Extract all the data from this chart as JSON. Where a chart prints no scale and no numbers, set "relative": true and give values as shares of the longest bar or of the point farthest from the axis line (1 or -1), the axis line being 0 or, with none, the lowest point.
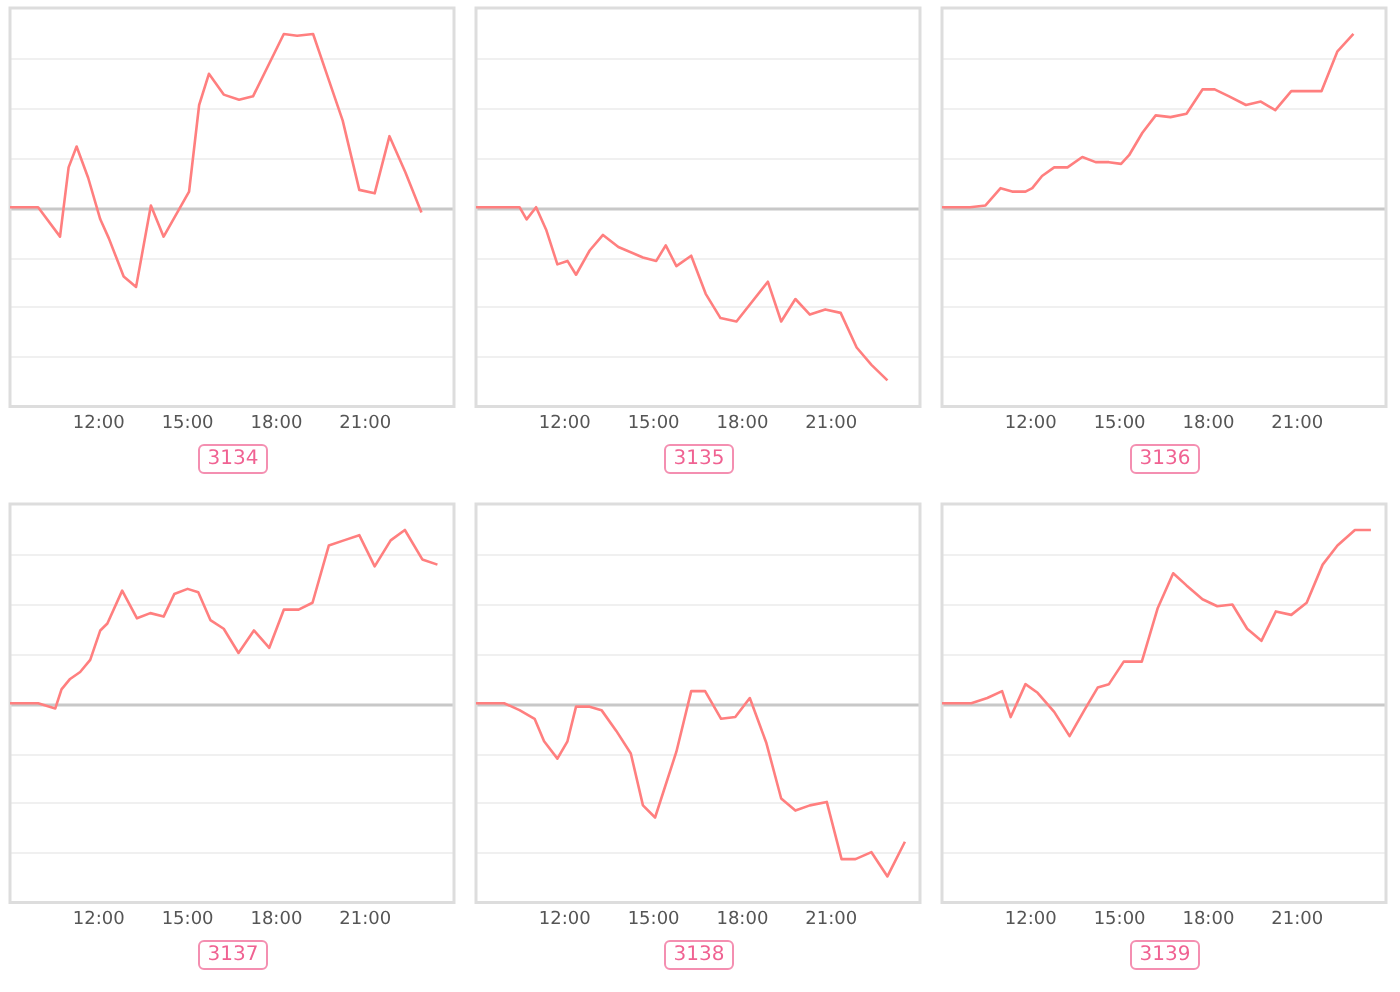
{
  "chart_data": [
    {
      "type": "line",
      "xlabel": "3134",
      "relative": true,
      "grid": "y",
      "marker": "none",
      "line_style": "solid",
      "tick_labels": "x",
      "color": "#ff7f7f",
      "xlim": [
        9,
        24
      ],
      "xticks": [
        {
          "value": 12,
          "label": "12:00"
        },
        {
          "value": 15,
          "label": "15:00"
        },
        {
          "value": 18,
          "label": "18:00"
        },
        {
          "value": 21,
          "label": "21:00"
        }
      ],
      "x": [
        9,
        9.95,
        10.69,
        10.98,
        11.25,
        11.64,
        12.05,
        12.34,
        12.84,
        13.26,
        13.76,
        14.19,
        15.05,
        15.39,
        15.72,
        16.22,
        16.74,
        17.21,
        18.25,
        18.7,
        19.24,
        19.72,
        20.24,
        20.8,
        21.32,
        21.82,
        22.36,
        22.9
      ],
      "values": [
        0,
        0,
        -0.17,
        0.23,
        0.35,
        0.17,
        -0.07,
        -0.18,
        -0.4,
        -0.46,
        0.01,
        -0.17,
        0.09,
        0.59,
        0.77,
        0.65,
        0.62,
        0.64,
        1,
        0.99,
        1,
        0.76,
        0.5,
        0.1,
        0.08,
        0.41,
        0.2,
        -0.03
      ]
    },
    {
      "type": "line",
      "xlabel": "3135",
      "relative": true,
      "grid": "y",
      "marker": "none",
      "line_style": "solid",
      "tick_labels": "x",
      "color": "#ff7f7f",
      "xlim": [
        9,
        24
      ],
      "xticks": [
        {
          "value": 12,
          "label": "12:00"
        },
        {
          "value": 15,
          "label": "15:00"
        },
        {
          "value": 18,
          "label": "18:00"
        },
        {
          "value": 21,
          "label": "21:00"
        }
      ],
      "x": [
        9,
        10.47,
        10.71,
        11.03,
        11.37,
        11.75,
        12.09,
        12.38,
        12.84,
        13.29,
        13.81,
        14.64,
        15.09,
        15.41,
        15.77,
        16.27,
        16.76,
        17.26,
        17.8,
        18.86,
        19.31,
        19.79,
        20.28,
        20.8,
        21.32,
        21.86,
        22.36,
        22.9
      ],
      "values": [
        0,
        0,
        -0.07,
        0,
        -0.13,
        -0.33,
        -0.31,
        -0.39,
        -0.25,
        -0.16,
        -0.23,
        -0.29,
        -0.31,
        -0.22,
        -0.34,
        -0.28,
        -0.5,
        -0.64,
        -0.66,
        -0.43,
        -0.66,
        -0.53,
        -0.62,
        -0.59,
        -0.61,
        -0.81,
        -0.91,
        -1
      ]
    },
    {
      "type": "line",
      "xlabel": "3136",
      "relative": true,
      "grid": "y",
      "marker": "none",
      "line_style": "solid",
      "tick_labels": "x",
      "color": "#ff7f7f",
      "xlim": [
        9,
        24
      ],
      "xticks": [
        {
          "value": 12,
          "label": "12:00"
        },
        {
          "value": 15,
          "label": "15:00"
        },
        {
          "value": 18,
          "label": "18:00"
        },
        {
          "value": 21,
          "label": "21:00"
        }
      ],
      "x": [
        9,
        9.95,
        10.47,
        10.98,
        11.37,
        11.82,
        12.05,
        12.38,
        12.79,
        13.24,
        13.74,
        14.19,
        14.64,
        15.05,
        15.32,
        15.77,
        16.22,
        16.72,
        17.26,
        17.8,
        18.21,
        18.7,
        19.27,
        19.77,
        20.26,
        20.8,
        21.32,
        21.82,
        22.36,
        22.9
      ],
      "values": [
        0,
        0,
        0.01,
        0.11,
        0.09,
        0.09,
        0.11,
        0.18,
        0.23,
        0.23,
        0.29,
        0.26,
        0.26,
        0.25,
        0.3,
        0.43,
        0.53,
        0.52,
        0.54,
        0.68,
        0.68,
        0.64,
        0.59,
        0.61,
        0.56,
        0.67,
        0.67,
        0.67,
        0.9,
        1
      ]
    },
    {
      "type": "line",
      "xlabel": "3137",
      "relative": true,
      "grid": "y",
      "marker": "none",
      "line_style": "solid",
      "tick_labels": "x",
      "color": "#ff7f7f",
      "xlim": [
        9,
        24
      ],
      "xticks": [
        {
          "value": 12,
          "label": "12:00"
        },
        {
          "value": 15,
          "label": "15:00"
        },
        {
          "value": 18,
          "label": "18:00"
        },
        {
          "value": 21,
          "label": "21:00"
        }
      ],
      "x": [
        9,
        9.95,
        10.53,
        10.74,
        11.03,
        11.37,
        11.71,
        12.05,
        12.29,
        12.79,
        13.29,
        13.74,
        14.19,
        14.55,
        15,
        15.36,
        15.77,
        16.22,
        16.72,
        17.24,
        17.76,
        18.25,
        18.75,
        19.22,
        19.77,
        20.28,
        20.8,
        21.32,
        21.86,
        22.34,
        22.93,
        23.44
      ],
      "values": [
        0,
        0,
        -0.03,
        0.08,
        0.14,
        0.18,
        0.25,
        0.42,
        0.46,
        0.65,
        0.49,
        0.52,
        0.5,
        0.63,
        0.66,
        0.64,
        0.48,
        0.43,
        0.29,
        0.42,
        0.32,
        0.54,
        0.54,
        0.58,
        0.91,
        0.94,
        0.97,
        0.79,
        0.94,
        1,
        0.83,
        0.8
      ]
    },
    {
      "type": "line",
      "xlabel": "3138",
      "relative": true,
      "grid": "y",
      "marker": "none",
      "line_style": "solid",
      "tick_labels": "x",
      "color": "#ff7f7f",
      "xlim": [
        9,
        24
      ],
      "xticks": [
        {
          "value": 12,
          "label": "12:00"
        },
        {
          "value": 15,
          "label": "15:00"
        },
        {
          "value": 18,
          "label": "18:00"
        },
        {
          "value": 21,
          "label": "21:00"
        }
      ],
      "x": [
        9,
        9.95,
        10.47,
        10.98,
        11.3,
        11.75,
        12.09,
        12.38,
        12.84,
        13.24,
        13.74,
        14.23,
        14.64,
        15.05,
        15.77,
        16.27,
        16.74,
        17.28,
        17.76,
        18.25,
        18.81,
        19.31,
        19.79,
        20.28,
        20.85,
        21.35,
        21.82,
        22.36,
        22.9,
        23.49
      ],
      "values": [
        0,
        0,
        -0.04,
        -0.09,
        -0.22,
        -0.32,
        -0.22,
        -0.02,
        -0.02,
        -0.04,
        -0.16,
        -0.29,
        -0.59,
        -0.66,
        -0.28,
        0.07,
        0.07,
        -0.09,
        -0.08,
        0.03,
        -0.23,
        -0.55,
        -0.62,
        -0.59,
        -0.57,
        -0.9,
        -0.9,
        -0.86,
        -1,
        -0.8
      ]
    },
    {
      "type": "line",
      "xlabel": "3139",
      "relative": true,
      "grid": "y",
      "marker": "none",
      "line_style": "solid",
      "tick_labels": "x",
      "color": "#ff7f7f",
      "xlim": [
        9,
        24
      ],
      "xticks": [
        {
          "value": 12,
          "label": "12:00"
        },
        {
          "value": 15,
          "label": "15:00"
        },
        {
          "value": 18,
          "label": "18:00"
        },
        {
          "value": 21,
          "label": "21:00"
        }
      ],
      "x": [
        9,
        9.99,
        10.53,
        11.03,
        11.32,
        11.82,
        12.23,
        12.79,
        13.31,
        13.81,
        14.26,
        14.64,
        15.14,
        15.75,
        16.29,
        16.81,
        17.26,
        17.8,
        18.3,
        18.81,
        19.31,
        19.79,
        20.28,
        20.8,
        21.32,
        21.86,
        22.36,
        22.95,
        23.49
      ],
      "values": [
        0,
        0,
        0.03,
        0.07,
        -0.08,
        0.11,
        0.06,
        -0.05,
        -0.19,
        -0.04,
        0.09,
        0.11,
        0.24,
        0.24,
        0.55,
        0.75,
        0.68,
        0.6,
        0.56,
        0.57,
        0.43,
        0.36,
        0.53,
        0.51,
        0.58,
        0.8,
        0.91,
        1,
        1
      ]
    }
  ]
}
